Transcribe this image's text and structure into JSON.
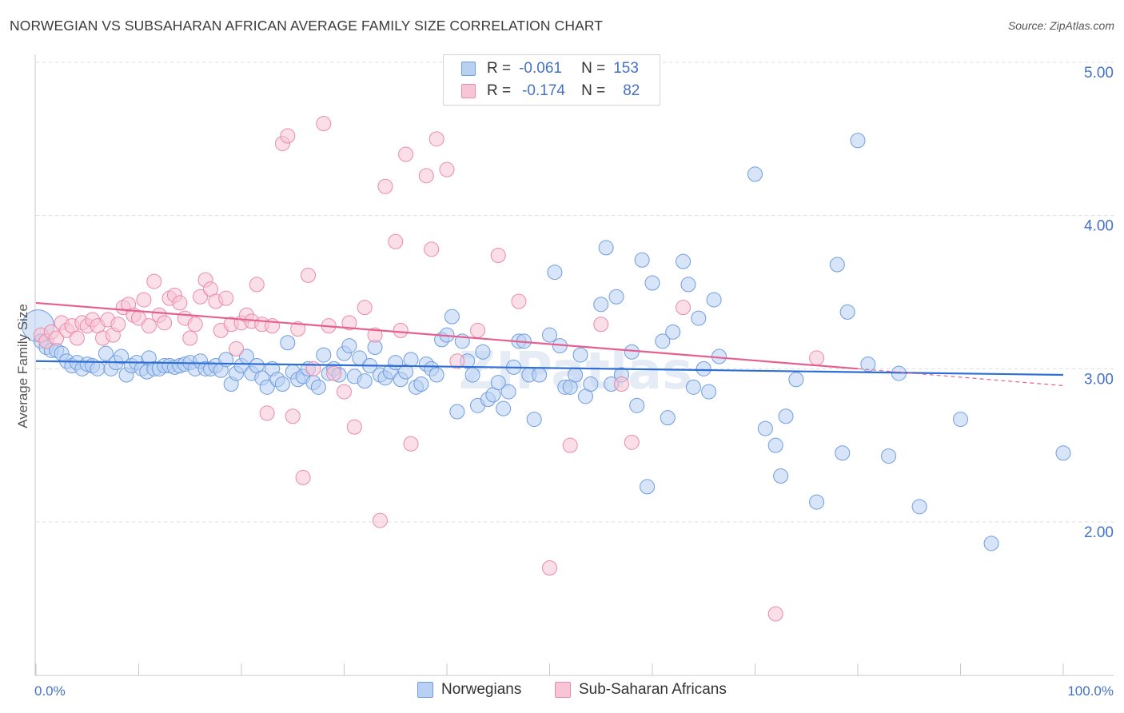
{
  "title": "NORWEGIAN VS SUBSAHARAN AFRICAN AVERAGE FAMILY SIZE CORRELATION CHART",
  "source": "Source: ZipAtlas.com",
  "legend": {
    "r_label": "R =",
    "n_label": "N =",
    "rows": [
      {
        "name": "Norwegians",
        "r": "-0.061",
        "n": "153",
        "fill": "#b8d0f2",
        "stroke": "#6e9de0"
      },
      {
        "name": "Sub-Saharan Africans",
        "r": "-0.174",
        "n": "82",
        "fill": "#f7c5d5",
        "stroke": "#ea8aaa"
      }
    ]
  },
  "watermark": "ZIPatlas",
  "chart_data": {
    "type": "scatter",
    "title": "NORWEGIAN VS SUBSAHARAN AFRICAN AVERAGE FAMILY SIZE CORRELATION CHART",
    "xlabel": "",
    "ylabel": "Average Family Size",
    "xlim": [
      0,
      100
    ],
    "ylim": [
      1.0,
      5.1
    ],
    "x_tick_labels": [
      "0.0%",
      "100.0%"
    ],
    "y_ticks": [
      2.0,
      3.0,
      4.0,
      5.0
    ],
    "y_tick_labels": [
      "2.00",
      "3.00",
      "4.00",
      "5.00"
    ],
    "grid": "horizontal dashed",
    "series": [
      {
        "name": "Norwegians",
        "color": "#6e9de0",
        "line_color": "#2e6fd6",
        "trend": {
          "x": [
            0,
            100
          ],
          "y": [
            3.05,
            2.96
          ]
        },
        "points": [
          [
            0.2,
            3.28
          ],
          [
            0.5,
            3.18
          ],
          [
            1,
            3.14
          ],
          [
            1.5,
            3.12
          ],
          [
            2,
            3.12
          ],
          [
            2.5,
            3.1
          ],
          [
            3,
            3.05
          ],
          [
            3.5,
            3.02
          ],
          [
            4,
            3.04
          ],
          [
            4.5,
            3.0
          ],
          [
            5,
            3.03
          ],
          [
            5.5,
            3.02
          ],
          [
            6,
            3.0
          ],
          [
            6.8,
            3.1
          ],
          [
            7.3,
            3.0
          ],
          [
            7.8,
            3.04
          ],
          [
            8.3,
            3.08
          ],
          [
            8.8,
            2.96
          ],
          [
            9.3,
            3.02
          ],
          [
            9.8,
            3.04
          ],
          [
            10.3,
            3.0
          ],
          [
            10.8,
            2.98
          ],
          [
            11,
            3.07
          ],
          [
            11.5,
            3.0
          ],
          [
            12,
            3.0
          ],
          [
            12.5,
            3.02
          ],
          [
            13,
            3.02
          ],
          [
            13.5,
            3.01
          ],
          [
            14,
            3.02
          ],
          [
            14.5,
            3.03
          ],
          [
            15,
            3.04
          ],
          [
            15.5,
            3.0
          ],
          [
            16,
            3.05
          ],
          [
            16.5,
            3.0
          ],
          [
            17,
            3.0
          ],
          [
            17.5,
            3.02
          ],
          [
            18,
            2.99
          ],
          [
            18.5,
            3.06
          ],
          [
            19,
            2.9
          ],
          [
            19.5,
            2.97
          ],
          [
            20,
            3.02
          ],
          [
            20.5,
            3.08
          ],
          [
            21,
            2.97
          ],
          [
            21.5,
            3.02
          ],
          [
            22,
            2.94
          ],
          [
            22.5,
            2.88
          ],
          [
            23,
            3.0
          ],
          [
            23.5,
            2.93
          ],
          [
            24,
            2.9
          ],
          [
            24.5,
            3.17
          ],
          [
            25,
            2.98
          ],
          [
            25.5,
            2.93
          ],
          [
            26,
            2.95
          ],
          [
            26.5,
            3.0
          ],
          [
            27,
            2.91
          ],
          [
            27.5,
            2.88
          ],
          [
            28,
            3.09
          ],
          [
            28.5,
            2.97
          ],
          [
            29,
            3.0
          ],
          [
            29.5,
            2.96
          ],
          [
            30,
            3.1
          ],
          [
            30.5,
            3.15
          ],
          [
            31,
            2.95
          ],
          [
            31.5,
            3.07
          ],
          [
            32,
            2.92
          ],
          [
            32.5,
            3.02
          ],
          [
            33,
            3.14
          ],
          [
            33.5,
            2.96
          ],
          [
            34,
            2.94
          ],
          [
            34.5,
            2.98
          ],
          [
            35,
            3.04
          ],
          [
            35.5,
            2.93
          ],
          [
            36,
            2.98
          ],
          [
            36.5,
            3.06
          ],
          [
            37,
            2.88
          ],
          [
            37.5,
            2.9
          ],
          [
            38,
            3.03
          ],
          [
            38.5,
            3.0
          ],
          [
            39,
            2.96
          ],
          [
            39.5,
            3.19
          ],
          [
            40,
            3.22
          ],
          [
            40.5,
            3.34
          ],
          [
            41,
            2.72
          ],
          [
            41.5,
            3.18
          ],
          [
            42,
            3.05
          ],
          [
            42.5,
            2.96
          ],
          [
            43,
            2.76
          ],
          [
            43.5,
            3.11
          ],
          [
            44,
            2.8
          ],
          [
            44.5,
            2.83
          ],
          [
            45,
            2.91
          ],
          [
            45.5,
            2.74
          ],
          [
            46,
            2.85
          ],
          [
            46.5,
            3.01
          ],
          [
            47,
            3.18
          ],
          [
            47.5,
            3.18
          ],
          [
            48,
            2.96
          ],
          [
            48.5,
            2.67
          ],
          [
            49,
            2.96
          ],
          [
            50,
            3.22
          ],
          [
            50.5,
            3.63
          ],
          [
            51,
            3.15
          ],
          [
            51.5,
            2.88
          ],
          [
            52,
            2.88
          ],
          [
            52.5,
            2.96
          ],
          [
            53,
            3.09
          ],
          [
            53.5,
            2.82
          ],
          [
            54,
            2.9
          ],
          [
            55,
            3.42
          ],
          [
            55.5,
            3.79
          ],
          [
            56,
            2.9
          ],
          [
            56.5,
            3.47
          ],
          [
            57,
            2.96
          ],
          [
            58,
            3.11
          ],
          [
            58.5,
            2.76
          ],
          [
            59,
            3.71
          ],
          [
            59.5,
            2.23
          ],
          [
            60,
            3.56
          ],
          [
            61,
            3.18
          ],
          [
            61.5,
            2.68
          ],
          [
            62,
            3.24
          ],
          [
            63,
            3.7
          ],
          [
            63.5,
            3.55
          ],
          [
            64,
            2.88
          ],
          [
            64.5,
            3.33
          ],
          [
            65,
            3.0
          ],
          [
            65.5,
            2.85
          ],
          [
            66,
            3.45
          ],
          [
            66.5,
            3.08
          ],
          [
            70,
            4.27
          ],
          [
            71,
            2.61
          ],
          [
            72,
            2.5
          ],
          [
            72.5,
            2.3
          ],
          [
            73,
            2.69
          ],
          [
            74,
            2.93
          ],
          [
            76,
            2.13
          ],
          [
            78,
            3.68
          ],
          [
            78.5,
            2.45
          ],
          [
            79,
            3.37
          ],
          [
            80,
            4.49
          ],
          [
            81,
            3.03
          ],
          [
            83,
            2.43
          ],
          [
            84,
            2.97
          ],
          [
            86,
            2.1
          ],
          [
            90,
            2.67
          ],
          [
            93,
            1.86
          ],
          [
            100,
            2.45
          ]
        ]
      },
      {
        "name": "Sub-Saharan Africans",
        "color": "#ea8aaa",
        "line_color": "#e6608f",
        "trend": {
          "x": [
            0,
            80
          ],
          "y": [
            3.43,
            3.0
          ]
        },
        "trend_dashed": {
          "x": [
            80,
            100
          ],
          "y": [
            3.0,
            2.89
          ]
        },
        "points": [
          [
            0.5,
            3.22
          ],
          [
            1,
            3.18
          ],
          [
            1.5,
            3.24
          ],
          [
            2,
            3.2
          ],
          [
            2.5,
            3.3
          ],
          [
            3,
            3.25
          ],
          [
            3.5,
            3.28
          ],
          [
            4,
            3.2
          ],
          [
            4.5,
            3.3
          ],
          [
            5,
            3.28
          ],
          [
            5.5,
            3.32
          ],
          [
            6,
            3.28
          ],
          [
            6.5,
            3.2
          ],
          [
            7,
            3.32
          ],
          [
            7.5,
            3.22
          ],
          [
            8,
            3.29
          ],
          [
            8.5,
            3.4
          ],
          [
            9,
            3.42
          ],
          [
            9.5,
            3.35
          ],
          [
            10,
            3.33
          ],
          [
            10.5,
            3.45
          ],
          [
            11,
            3.28
          ],
          [
            11.5,
            3.57
          ],
          [
            12,
            3.35
          ],
          [
            12.5,
            3.3
          ],
          [
            13,
            3.46
          ],
          [
            13.5,
            3.48
          ],
          [
            14,
            3.43
          ],
          [
            14.5,
            3.33
          ],
          [
            15,
            3.2
          ],
          [
            15.5,
            3.29
          ],
          [
            16,
            3.47
          ],
          [
            16.5,
            3.58
          ],
          [
            17,
            3.52
          ],
          [
            17.5,
            3.44
          ],
          [
            18,
            3.25
          ],
          [
            18.5,
            3.46
          ],
          [
            19,
            3.29
          ],
          [
            19.5,
            3.13
          ],
          [
            20,
            3.3
          ],
          [
            20.5,
            3.35
          ],
          [
            21,
            3.31
          ],
          [
            21.5,
            3.55
          ],
          [
            22,
            3.29
          ],
          [
            22.5,
            2.71
          ],
          [
            23,
            3.28
          ],
          [
            24,
            4.47
          ],
          [
            24.5,
            4.52
          ],
          [
            25,
            2.69
          ],
          [
            25.5,
            3.26
          ],
          [
            26,
            2.29
          ],
          [
            26.5,
            3.61
          ],
          [
            27,
            3.0
          ],
          [
            28,
            4.6
          ],
          [
            28.5,
            3.28
          ],
          [
            29,
            2.97
          ],
          [
            30,
            2.85
          ],
          [
            30.5,
            3.3
          ],
          [
            31,
            2.62
          ],
          [
            32,
            3.4
          ],
          [
            33,
            3.22
          ],
          [
            33.5,
            2.01
          ],
          [
            34,
            4.19
          ],
          [
            35,
            3.83
          ],
          [
            35.5,
            3.25
          ],
          [
            36,
            4.4
          ],
          [
            36.5,
            2.51
          ],
          [
            38,
            4.26
          ],
          [
            38.5,
            3.78
          ],
          [
            39,
            4.5
          ],
          [
            40,
            4.3
          ],
          [
            41,
            3.05
          ],
          [
            43,
            3.25
          ],
          [
            45,
            3.74
          ],
          [
            47,
            3.44
          ],
          [
            50,
            1.7
          ],
          [
            52,
            2.5
          ],
          [
            55,
            3.29
          ],
          [
            57,
            2.9
          ],
          [
            58,
            2.52
          ],
          [
            63,
            3.4
          ],
          [
            72,
            1.4
          ],
          [
            76,
            3.07
          ]
        ]
      }
    ]
  }
}
